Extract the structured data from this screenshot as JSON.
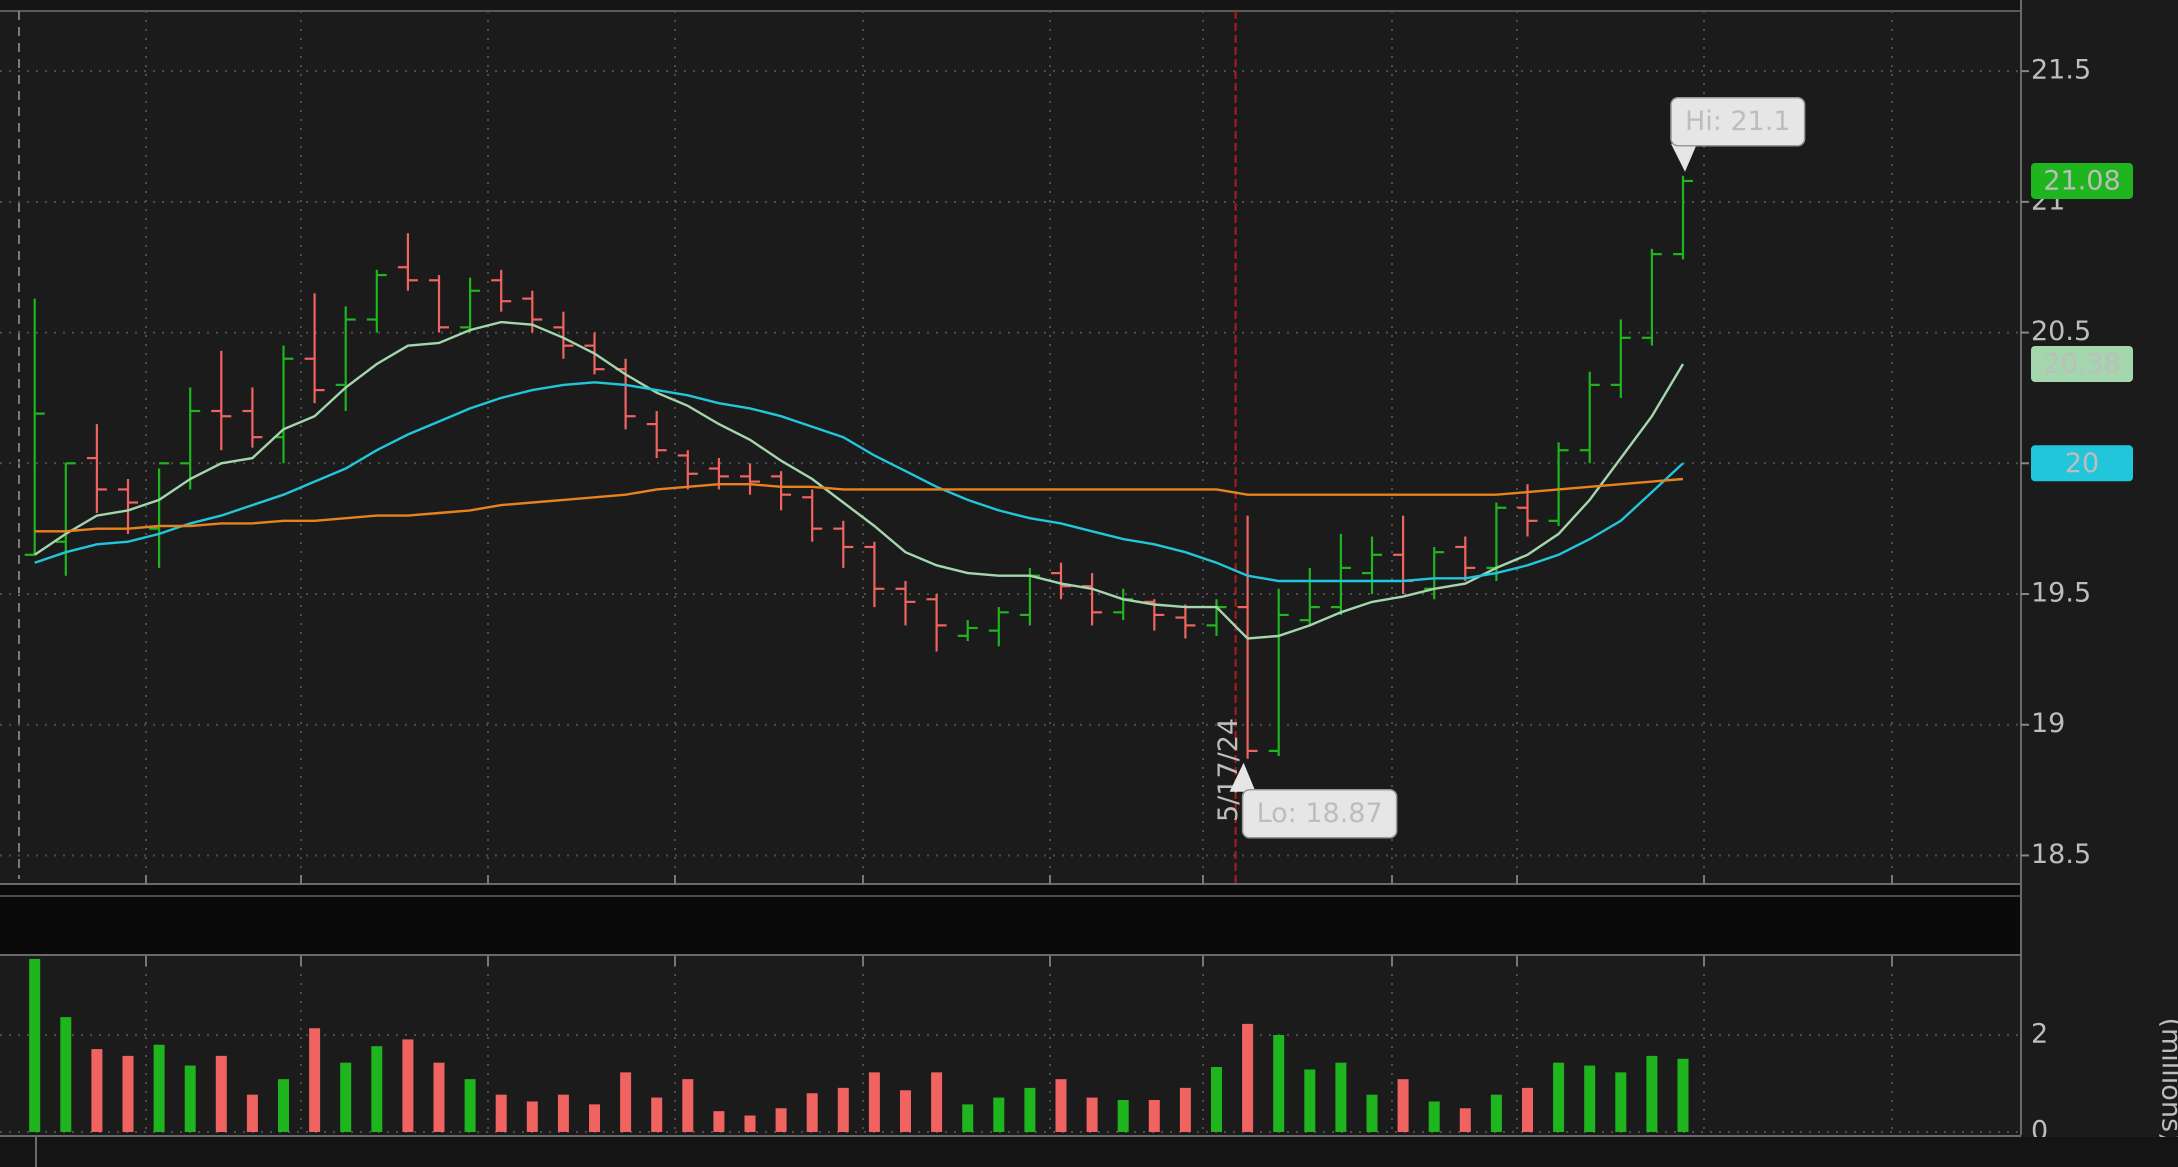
{
  "chart_data": [
    {
      "type": "ohlc",
      "categories": [
        null,
        null,
        null,
        null,
        null,
        null,
        null,
        null,
        null,
        null,
        null,
        null,
        null,
        null,
        null,
        null,
        null,
        null,
        null,
        null,
        null,
        null,
        null,
        null,
        null,
        null,
        null,
        null,
        null,
        null,
        null,
        null,
        null,
        null,
        null,
        null,
        null,
        null,
        null,
        "5/17/24",
        null,
        null,
        null,
        null,
        null,
        null,
        null,
        null,
        null,
        null,
        null,
        null,
        null,
        null
      ],
      "open": [
        19.65,
        19.7,
        20.02,
        19.9,
        19.75,
        20.0,
        20.2,
        20.2,
        20.1,
        20.4,
        20.3,
        20.55,
        20.75,
        20.7,
        20.52,
        20.7,
        20.63,
        20.52,
        20.45,
        20.36,
        20.15,
        20.03,
        19.98,
        19.95,
        19.95,
        19.87,
        19.75,
        19.68,
        19.52,
        19.48,
        19.34,
        19.36,
        19.42,
        19.58,
        19.53,
        19.43,
        19.47,
        19.41,
        19.38,
        19.45,
        18.9,
        19.4,
        19.45,
        19.58,
        19.65,
        19.52,
        19.68,
        19.6,
        19.83,
        19.78,
        20.05,
        20.3,
        20.48,
        20.8
      ],
      "high": [
        20.63,
        20.0,
        20.15,
        19.94,
        19.98,
        20.29,
        20.43,
        20.29,
        20.45,
        20.65,
        20.6,
        20.74,
        20.88,
        20.72,
        20.71,
        20.74,
        20.66,
        20.58,
        20.5,
        20.4,
        20.2,
        20.05,
        20.02,
        20.0,
        19.97,
        19.9,
        19.78,
        19.7,
        19.55,
        19.5,
        19.4,
        19.45,
        19.6,
        19.62,
        19.58,
        19.52,
        19.48,
        19.46,
        19.48,
        19.8,
        19.52,
        19.6,
        19.73,
        19.72,
        19.8,
        19.68,
        19.72,
        19.85,
        19.92,
        20.08,
        20.35,
        20.55,
        20.82,
        21.1
      ],
      "low": [
        19.65,
        19.57,
        19.81,
        19.73,
        19.6,
        19.9,
        20.05,
        20.06,
        20.0,
        20.23,
        20.2,
        20.5,
        20.66,
        20.5,
        20.5,
        20.58,
        20.5,
        20.4,
        20.34,
        20.13,
        20.02,
        19.9,
        19.9,
        19.88,
        19.82,
        19.7,
        19.6,
        19.45,
        19.38,
        19.28,
        19.32,
        19.3,
        19.38,
        19.48,
        19.38,
        19.4,
        19.36,
        19.33,
        19.34,
        18.87,
        18.88,
        19.38,
        19.42,
        19.5,
        19.5,
        19.48,
        19.55,
        19.55,
        19.72,
        19.76,
        20.0,
        20.25,
        20.45,
        20.78
      ],
      "close": [
        20.19,
        20.0,
        19.9,
        19.85,
        20.0,
        20.2,
        20.18,
        20.1,
        20.4,
        20.28,
        20.55,
        20.72,
        20.7,
        20.52,
        20.66,
        20.62,
        20.55,
        20.45,
        20.36,
        20.18,
        20.05,
        19.96,
        19.95,
        19.93,
        19.88,
        19.75,
        19.68,
        19.52,
        19.47,
        19.38,
        19.37,
        19.43,
        19.57,
        19.53,
        19.43,
        19.48,
        19.42,
        19.38,
        19.45,
        18.9,
        19.42,
        19.45,
        19.6,
        19.65,
        19.55,
        19.66,
        19.6,
        19.83,
        19.78,
        20.05,
        20.3,
        20.48,
        20.8,
        21.08
      ],
      "up_color": "#1fb51f",
      "down_color": "#ef6461",
      "series": [
        {
          "color": "#a3d6ad",
          "badge_text_color": "#1a1a1a",
          "values": [
            19.65,
            19.73,
            19.8,
            19.82,
            19.86,
            19.94,
            20.0,
            20.02,
            20.13,
            20.18,
            20.29,
            20.38,
            20.45,
            20.46,
            20.51,
            20.54,
            20.53,
            20.48,
            20.42,
            20.34,
            20.27,
            20.22,
            20.15,
            20.09,
            20.01,
            19.94,
            19.85,
            19.76,
            19.66,
            19.61,
            19.58,
            19.57,
            19.57,
            19.54,
            19.52,
            19.48,
            19.46,
            19.45,
            19.45,
            19.33,
            19.34,
            19.38,
            19.43,
            19.47,
            19.49,
            19.52,
            19.54,
            19.6,
            19.65,
            19.73,
            19.86,
            20.02,
            20.18,
            20.38
          ]
        },
        {
          "color": "#22c6da",
          "badge_text_color": "#1a1a1a",
          "values": [
            19.62,
            19.66,
            19.69,
            19.7,
            19.73,
            19.77,
            19.8,
            19.84,
            19.88,
            19.93,
            19.98,
            20.05,
            20.11,
            20.16,
            20.21,
            20.25,
            20.28,
            20.3,
            20.31,
            20.3,
            20.28,
            20.26,
            20.23,
            20.21,
            20.18,
            20.14,
            20.1,
            20.03,
            19.97,
            19.91,
            19.86,
            19.82,
            19.79,
            19.77,
            19.74,
            19.71,
            19.69,
            19.66,
            19.62,
            19.57,
            19.55,
            19.55,
            19.55,
            19.55,
            19.55,
            19.56,
            19.56,
            19.58,
            19.61,
            19.65,
            19.71,
            19.78,
            19.89,
            20.0
          ]
        },
        {
          "color": "#e8821e",
          "values": [
            19.74,
            19.74,
            19.75,
            19.75,
            19.76,
            19.76,
            19.77,
            19.77,
            19.78,
            19.78,
            19.79,
            19.8,
            19.8,
            19.81,
            19.82,
            19.84,
            19.85,
            19.86,
            19.87,
            19.88,
            19.9,
            19.91,
            19.92,
            19.92,
            19.91,
            19.91,
            19.9,
            19.9,
            19.9,
            19.9,
            19.9,
            19.9,
            19.9,
            19.9,
            19.9,
            19.9,
            19.9,
            19.9,
            19.9,
            19.88,
            19.88,
            19.88,
            19.88,
            19.88,
            19.88,
            19.88,
            19.88,
            19.88,
            19.89,
            19.9,
            19.91,
            19.92,
            19.93,
            19.94
          ]
        }
      ],
      "ylim": [
        18.41,
        21.73
      ],
      "yticks": [
        18.5,
        19,
        19.5,
        20,
        20.5,
        21,
        21.5
      ],
      "grid": true,
      "annotations": [
        {
          "text": "Hi: 21.1"
        },
        {
          "text": "Lo: 18.87"
        }
      ]
    },
    {
      "type": "bar",
      "values": [
        3.57,
        2.37,
        1.71,
        1.57,
        1.8,
        1.37,
        1.57,
        0.77,
        1.09,
        2.14,
        1.43,
        1.77,
        1.91,
        1.43,
        1.09,
        0.77,
        0.63,
        0.77,
        0.57,
        1.23,
        0.71,
        1.09,
        0.43,
        0.34,
        0.49,
        0.8,
        0.91,
        1.23,
        0.86,
        1.23,
        0.57,
        0.71,
        0.91,
        1.09,
        0.71,
        0.66,
        0.66,
        0.91,
        1.34,
        2.23,
        2.0,
        1.29,
        1.43,
        0.77,
        1.09,
        0.63,
        0.49,
        0.77,
        0.91,
        1.43,
        1.37,
        1.23,
        1.57,
        1.51
      ],
      "ylim": [
        0,
        3.63
      ],
      "yticks": [
        0,
        2
      ],
      "ylabel": "(millions)",
      "grid": true
    }
  ]
}
